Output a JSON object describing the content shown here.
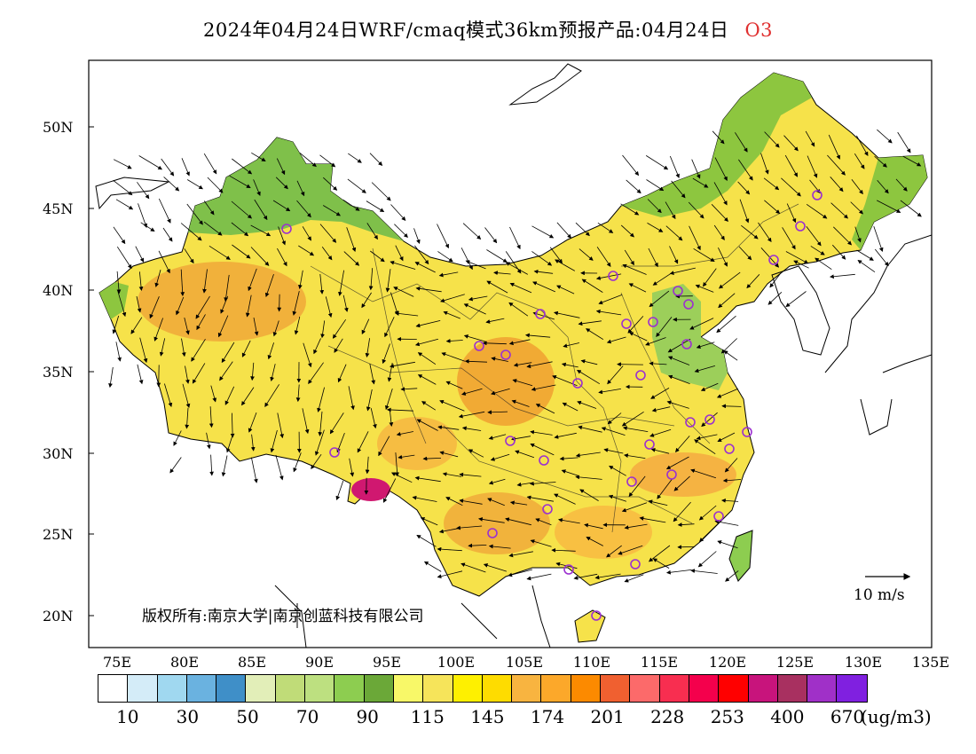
{
  "title": {
    "main": "2024年04月24日WRF/cmaq模式36km预报产品:04月24日",
    "species": "O3"
  },
  "map": {
    "lat_labels": [
      "50N",
      "45N",
      "40N",
      "35N",
      "30N",
      "25N",
      "20N"
    ],
    "lon_labels": [
      "75E",
      "80E",
      "85E",
      "90E",
      "95E",
      "100E",
      "105E",
      "110E",
      "115E",
      "120E",
      "125E",
      "130E",
      "135E"
    ],
    "copyright": "版权所有:南京大学|南京创蓝科技有限公司",
    "wind_reference": "10 m/s",
    "land_color": "#f4e64a",
    "hotspot_color": "#f0a030",
    "north_color": "#8dc63f",
    "station_marker_color": "#9b30d0"
  },
  "colorbar": {
    "colors": [
      "#ffffff",
      "#d4ecf8",
      "#a0d8f0",
      "#6ab2e0",
      "#3f8fc8",
      "#e2eeb8",
      "#c0dc78",
      "#bde080",
      "#8dcd50",
      "#6ba838",
      "#f8f868",
      "#f6e45a",
      "#fef000",
      "#fedc00",
      "#f8b440",
      "#fca82a",
      "#fc8a00",
      "#f06030",
      "#fc6a6a",
      "#f82e50",
      "#f4004c",
      "#ff0000",
      "#c8147c",
      "#a83060",
      "#a030c8",
      "#8020e0"
    ],
    "labels": [
      "10",
      "30",
      "50",
      "70",
      "90",
      "115",
      "145",
      "174",
      "201",
      "228",
      "253",
      "400",
      "670"
    ],
    "units": "(ug/m3)"
  }
}
